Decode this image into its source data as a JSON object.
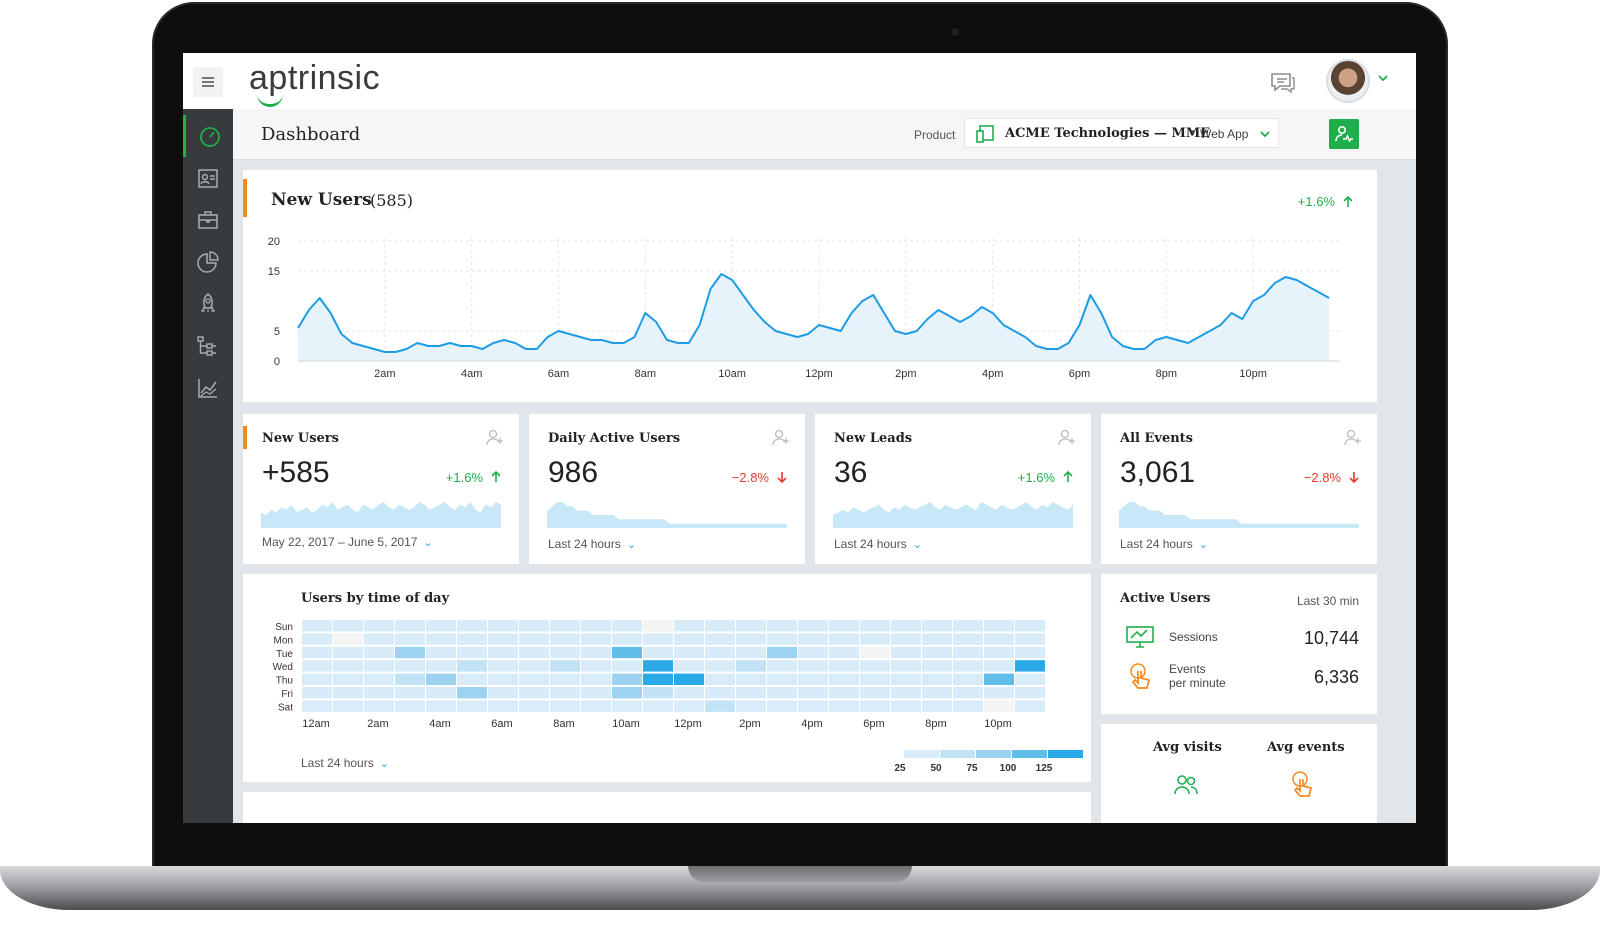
{
  "app": {
    "logo_text": "aptrinsic"
  },
  "header": {
    "page_title": "Dashboard",
    "product_label": "Product",
    "product_name": "ACME Technologies — MME",
    "product_sep": "•",
    "product_type": "Web App"
  },
  "sidebar": {
    "items": [
      {
        "icon": "speedometer-icon",
        "active": true
      },
      {
        "icon": "contact-card-icon"
      },
      {
        "icon": "briefcase-icon"
      },
      {
        "icon": "pie-chart-icon"
      },
      {
        "icon": "rocket-icon"
      },
      {
        "icon": "hierarchy-icon"
      },
      {
        "icon": "trend-chart-icon"
      }
    ]
  },
  "colors": {
    "accent": "#1fae4b",
    "highlight": "#f5891f",
    "line": "#1e9be6",
    "fill": "#e6f3fb",
    "up": "#1fae4b",
    "down": "#e23b2e"
  },
  "new_users_chart": {
    "title": "New Users",
    "count": "(585)",
    "delta": "+1.6%",
    "chart_data": {
      "type": "area",
      "title": "New Users",
      "y_ticks": [
        "20",
        "15",
        "5",
        "0"
      ],
      "x_ticks": [
        "2am",
        "4am",
        "6am",
        "8am",
        "10am",
        "12pm",
        "2pm",
        "4pm",
        "6pm",
        "8pm",
        "10pm"
      ],
      "x": [
        0,
        0.25,
        0.5,
        0.75,
        1,
        1.25,
        1.5,
        1.75,
        2,
        2.25,
        2.5,
        2.75,
        3,
        3.25,
        3.5,
        3.75,
        4,
        4.25,
        4.5,
        4.75,
        5,
        5.25,
        5.5,
        5.75,
        6,
        6.25,
        6.5,
        6.75,
        7,
        7.25,
        7.5,
        7.75,
        8,
        8.25,
        8.5,
        8.75,
        9,
        9.25,
        9.5,
        9.75,
        10,
        10.25,
        10.5,
        10.75,
        11,
        11.25,
        11.5,
        11.75,
        12,
        12.25,
        12.5,
        12.75,
        13,
        13.25,
        13.5,
        13.75,
        14,
        14.25,
        14.5,
        14.75,
        15,
        15.25,
        15.5,
        15.75,
        16,
        16.25,
        16.5,
        16.75,
        17,
        17.25,
        17.5,
        17.75,
        18,
        18.25,
        18.5,
        18.75,
        19,
        19.25,
        19.5,
        19.75,
        20,
        20.25,
        20.5,
        20.75,
        21,
        21.25,
        21.5,
        21.75,
        22,
        22.25,
        22.5,
        22.75,
        23,
        23.25,
        23.5,
        23.75
      ],
      "values": [
        5.5,
        8.5,
        10.5,
        8,
        4.5,
        3,
        2.5,
        2,
        1.5,
        1.5,
        2,
        3,
        2.5,
        2.5,
        3,
        2.5,
        2.5,
        2,
        3,
        3.5,
        3,
        2,
        2,
        4,
        5,
        4.5,
        4,
        3.5,
        3.5,
        3,
        3,
        4,
        8,
        6.5,
        3.5,
        3,
        3,
        6,
        12,
        14.5,
        13.5,
        11,
        8.5,
        6.5,
        5,
        4.5,
        4,
        4.5,
        6,
        5.5,
        5,
        8,
        10,
        11,
        8,
        5,
        4.5,
        5,
        7,
        8.5,
        7.5,
        6.5,
        7.5,
        9,
        8,
        6,
        5,
        4,
        2.5,
        2,
        2,
        3,
        6,
        11,
        8,
        4,
        2.5,
        2,
        2,
        3.5,
        4,
        3.5,
        3,
        4,
        5,
        6,
        8,
        7,
        10,
        11,
        13,
        14,
        13.5,
        12.5,
        11.5,
        10.5
      ],
      "ylim": [
        0,
        20
      ]
    }
  },
  "kpis": [
    {
      "title": "New Users",
      "value": "+585",
      "delta": "+1.6%",
      "direction": "up",
      "footer": "May 22, 2017 – June 5, 2017",
      "icon": "add-user-icon",
      "spark": [
        6,
        5,
        7,
        6,
        8,
        7,
        9,
        6,
        7,
        8,
        6,
        7,
        9,
        8,
        10,
        7,
        8,
        9,
        7,
        6,
        9,
        8,
        7,
        9,
        10,
        8,
        7,
        9,
        8,
        7,
        8,
        10,
        9,
        7,
        8,
        9,
        10,
        8,
        7,
        9,
        8,
        10,
        7,
        6,
        9,
        8,
        10,
        9
      ]
    },
    {
      "title": "Daily Active Users",
      "value": "986",
      "delta": "−2.8%",
      "direction": "down",
      "footer": "Last 24 hours",
      "icon": "users-icon",
      "spark": [
        4,
        5,
        6,
        6,
        5,
        5,
        4,
        4,
        4,
        3,
        3,
        3,
        3,
        3,
        2,
        2,
        2,
        2,
        2,
        2,
        2,
        2,
        2,
        2,
        1,
        1,
        1,
        1,
        1,
        1,
        1,
        1,
        1,
        1,
        1,
        1,
        1,
        1,
        1,
        1,
        1,
        1,
        1,
        1,
        1,
        1,
        1,
        1
      ]
    },
    {
      "title": "New Leads",
      "value": "36",
      "delta": "+1.6%",
      "direction": "up",
      "footer": "Last 24 hours",
      "icon": "lead-icon",
      "spark": [
        5,
        6,
        7,
        6,
        8,
        7,
        6,
        7,
        8,
        9,
        7,
        6,
        8,
        7,
        9,
        8,
        7,
        8,
        9,
        10,
        8,
        7,
        9,
        8,
        7,
        8,
        9,
        8,
        7,
        10,
        9,
        8,
        7,
        9,
        8,
        7,
        8,
        9,
        10,
        8,
        7,
        9,
        8,
        10,
        9,
        8,
        7,
        9
      ]
    },
    {
      "title": "All Events",
      "value": "3,061",
      "delta": "−2.8%",
      "direction": "down",
      "footer": "Last 24 hours",
      "icon": "touch-icon",
      "spark": [
        4,
        5,
        6,
        6,
        5,
        5,
        4,
        4,
        4,
        3,
        3,
        3,
        3,
        3,
        2,
        2,
        2,
        2,
        2,
        2,
        2,
        2,
        2,
        2,
        1,
        1,
        1,
        1,
        1,
        1,
        1,
        1,
        1,
        1,
        1,
        1,
        1,
        1,
        1,
        1,
        1,
        1,
        1,
        1,
        1,
        1,
        1,
        1
      ]
    }
  ],
  "heatmap": {
    "title": "Users by time of day",
    "rows": [
      "Sun",
      "Mon",
      "Tue",
      "Wed",
      "Thu",
      "Fri",
      "Sat"
    ],
    "cols": [
      "12am",
      "2am",
      "4am",
      "6am",
      "8am",
      "10am",
      "12pm",
      "2pm",
      "4pm",
      "6pm",
      "8pm",
      "10pm"
    ],
    "footer": "Last 24 hours",
    "legend": [
      "25",
      "50",
      "75",
      "100",
      "125"
    ],
    "chart_data": {
      "type": "heatmap",
      "rows": [
        "Sun",
        "Mon",
        "Tue",
        "Wed",
        "Thu",
        "Fri",
        "Sat"
      ],
      "columns": 24,
      "values": [
        [
          1,
          1,
          1,
          1,
          1,
          1,
          1,
          1,
          1,
          1,
          1,
          0,
          1,
          1,
          1,
          1,
          1,
          1,
          1,
          1,
          1,
          1,
          1,
          1
        ],
        [
          1,
          0,
          1,
          1,
          1,
          1,
          1,
          1,
          1,
          1,
          1,
          1,
          1,
          1,
          1,
          1,
          1,
          1,
          1,
          1,
          1,
          1,
          1,
          1
        ],
        [
          1,
          1,
          1,
          3,
          1,
          1,
          1,
          1,
          1,
          1,
          4,
          1,
          1,
          1,
          1,
          3,
          1,
          1,
          0,
          1,
          1,
          1,
          1,
          1
        ],
        [
          1,
          1,
          1,
          1,
          1,
          2,
          1,
          1,
          2,
          1,
          1,
          5,
          1,
          1,
          2,
          1,
          1,
          1,
          1,
          1,
          1,
          1,
          1,
          5
        ],
        [
          1,
          1,
          1,
          2,
          3,
          1,
          1,
          1,
          1,
          1,
          3,
          5,
          5,
          1,
          1,
          1,
          1,
          1,
          1,
          1,
          1,
          1,
          4,
          1
        ],
        [
          1,
          1,
          1,
          1,
          1,
          3,
          1,
          1,
          1,
          1,
          3,
          2,
          1,
          1,
          1,
          1,
          1,
          1,
          1,
          1,
          1,
          1,
          1,
          1
        ],
        [
          1,
          1,
          1,
          1,
          1,
          1,
          1,
          1,
          1,
          1,
          1,
          1,
          1,
          2,
          1,
          1,
          1,
          1,
          1,
          1,
          1,
          1,
          0,
          1
        ]
      ]
    }
  },
  "active_users": {
    "title": "Active Users",
    "period": "Last 30 min",
    "rows": [
      {
        "label": "Sessions",
        "value": "10,744",
        "icon": "sessions-icon"
      },
      {
        "label": "Events\nper minute",
        "value": "6,336",
        "icon": "touch-icon"
      }
    ]
  },
  "averages": {
    "visits": "Avg visits",
    "events": "Avg events"
  }
}
